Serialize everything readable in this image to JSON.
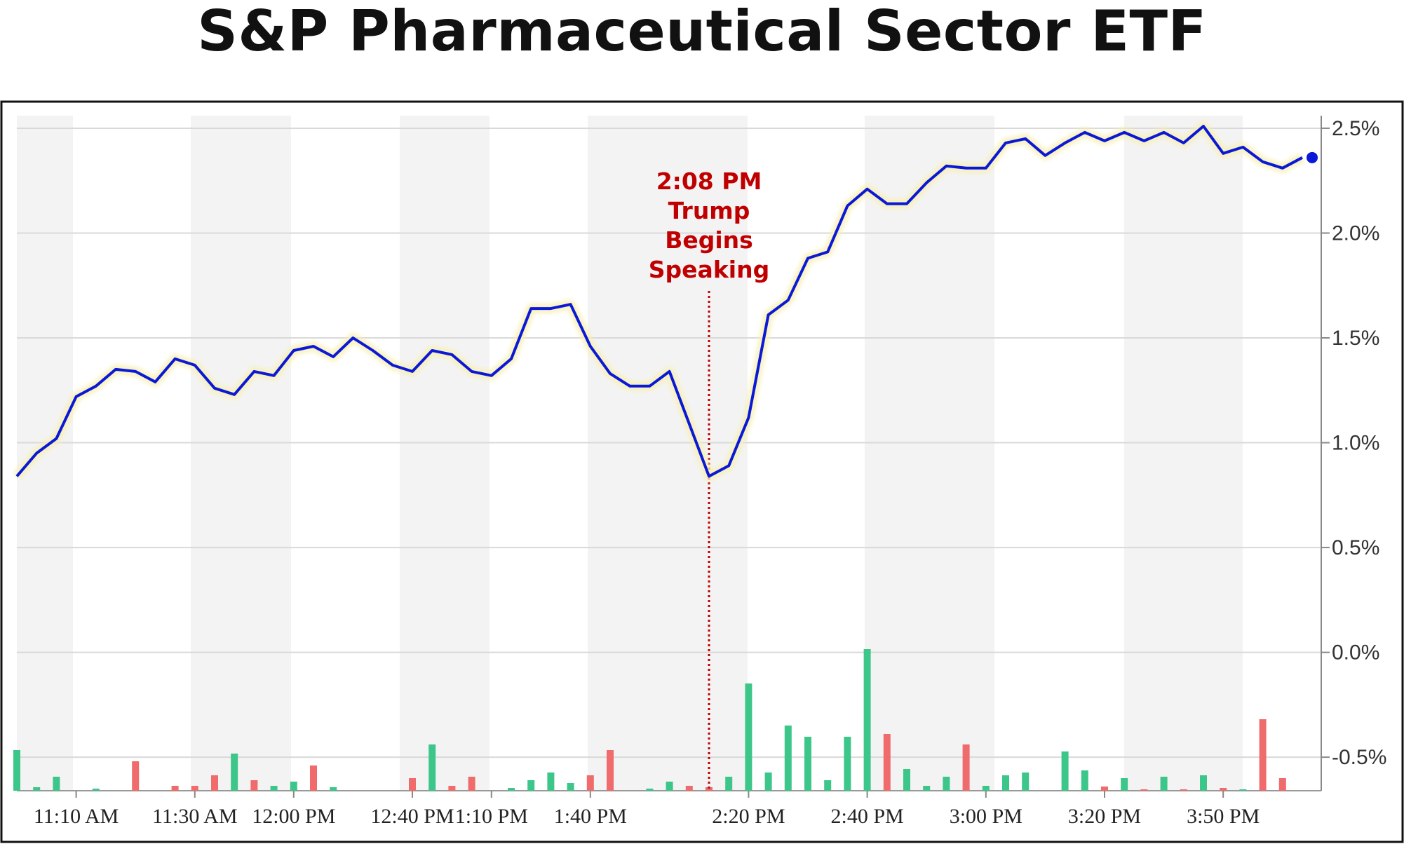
{
  "chart_data": {
    "type": "line",
    "title": "S&P Pharmaceutical Sector ETF",
    "xlabel": "",
    "ylabel": "",
    "ylim": [
      -0.66,
      2.56
    ],
    "yticks": [
      2.5,
      2.0,
      1.5,
      1.0,
      0.5,
      0.0,
      -0.5
    ],
    "ytick_labels": [
      "2.5%",
      "2.0%",
      "1.5%",
      "1.0%",
      "0.5%",
      "0.0%",
      "-0.5%"
    ],
    "x_tick_labels": [
      "11:10 AM",
      "11:30 AM",
      "12:00 PM",
      "12:40 PM",
      "1:10 PM",
      "1:40 PM",
      "2:20 PM",
      "2:40 PM",
      "3:00 PM",
      "3:20 PM",
      "3:50 PM"
    ],
    "x_tick_index": [
      3,
      9,
      14,
      20,
      24,
      29,
      37,
      43,
      49,
      55,
      61
    ],
    "grid": true,
    "line_color": "#0a18d8",
    "up_color": "#3cc68a",
    "down_color": "#f06b6b",
    "series": [
      {
        "values": [
          0.84,
          0.95,
          1.02,
          1.22,
          1.27,
          1.35,
          1.34,
          1.29,
          1.4,
          1.37,
          1.26,
          1.23,
          1.34,
          1.32,
          1.44,
          1.46,
          1.41,
          1.5,
          1.44,
          1.37,
          1.34,
          1.44,
          1.42,
          1.34,
          1.32,
          1.4,
          1.64,
          1.64,
          1.66,
          1.46,
          1.33,
          1.27,
          1.27,
          1.34,
          1.09,
          0.84,
          0.89,
          1.12,
          1.61,
          1.68,
          1.88,
          1.91,
          2.13,
          2.21,
          2.14,
          2.14,
          2.24,
          2.32,
          2.31,
          2.31,
          2.43,
          2.45,
          2.37,
          2.43,
          2.48,
          2.44,
          2.48,
          2.44,
          2.48,
          2.43,
          2.51,
          2.38,
          2.41,
          2.34,
          2.31,
          2.36
        ]
      }
    ],
    "volume_bars": [
      {
        "i": 0,
        "h": 58,
        "dir": "up"
      },
      {
        "i": 1,
        "h": 5,
        "dir": "up"
      },
      {
        "i": 2,
        "h": 20,
        "dir": "up"
      },
      {
        "i": 4,
        "h": 3,
        "dir": "up"
      },
      {
        "i": 6,
        "h": 42,
        "dir": "down"
      },
      {
        "i": 8,
        "h": 7,
        "dir": "down"
      },
      {
        "i": 9,
        "h": 7,
        "dir": "down"
      },
      {
        "i": 10,
        "h": 22,
        "dir": "down"
      },
      {
        "i": 11,
        "h": 53,
        "dir": "up"
      },
      {
        "i": 12,
        "h": 15,
        "dir": "down"
      },
      {
        "i": 13,
        "h": 7,
        "dir": "up"
      },
      {
        "i": 14,
        "h": 13,
        "dir": "up"
      },
      {
        "i": 15,
        "h": 36,
        "dir": "down"
      },
      {
        "i": 16,
        "h": 5,
        "dir": "up"
      },
      {
        "i": 20,
        "h": 18,
        "dir": "down"
      },
      {
        "i": 21,
        "h": 66,
        "dir": "up"
      },
      {
        "i": 22,
        "h": 7,
        "dir": "down"
      },
      {
        "i": 23,
        "h": 20,
        "dir": "down"
      },
      {
        "i": 25,
        "h": 4,
        "dir": "up"
      },
      {
        "i": 26,
        "h": 15,
        "dir": "up"
      },
      {
        "i": 27,
        "h": 26,
        "dir": "up"
      },
      {
        "i": 28,
        "h": 11,
        "dir": "up"
      },
      {
        "i": 29,
        "h": 22,
        "dir": "down"
      },
      {
        "i": 30,
        "h": 58,
        "dir": "down"
      },
      {
        "i": 32,
        "h": 3,
        "dir": "up"
      },
      {
        "i": 33,
        "h": 13,
        "dir": "up"
      },
      {
        "i": 34,
        "h": 7,
        "dir": "down"
      },
      {
        "i": 35,
        "h": 5,
        "dir": "down"
      },
      {
        "i": 36,
        "h": 20,
        "dir": "up"
      },
      {
        "i": 37,
        "h": 153,
        "dir": "up"
      },
      {
        "i": 38,
        "h": 26,
        "dir": "up"
      },
      {
        "i": 39,
        "h": 93,
        "dir": "up"
      },
      {
        "i": 40,
        "h": 77,
        "dir": "up"
      },
      {
        "i": 41,
        "h": 15,
        "dir": "up"
      },
      {
        "i": 42,
        "h": 77,
        "dir": "up"
      },
      {
        "i": 43,
        "h": 202,
        "dir": "up"
      },
      {
        "i": 44,
        "h": 81,
        "dir": "down"
      },
      {
        "i": 45,
        "h": 31,
        "dir": "up"
      },
      {
        "i": 46,
        "h": 7,
        "dir": "up"
      },
      {
        "i": 47,
        "h": 20,
        "dir": "up"
      },
      {
        "i": 48,
        "h": 66,
        "dir": "down"
      },
      {
        "i": 49,
        "h": 7,
        "dir": "up"
      },
      {
        "i": 50,
        "h": 22,
        "dir": "up"
      },
      {
        "i": 51,
        "h": 26,
        "dir": "up"
      },
      {
        "i": 53,
        "h": 56,
        "dir": "up"
      },
      {
        "i": 54,
        "h": 29,
        "dir": "up"
      },
      {
        "i": 55,
        "h": 6,
        "dir": "down"
      },
      {
        "i": 56,
        "h": 18,
        "dir": "up"
      },
      {
        "i": 57,
        "h": 2,
        "dir": "down"
      },
      {
        "i": 58,
        "h": 20,
        "dir": "up"
      },
      {
        "i": 59,
        "h": 2,
        "dir": "down"
      },
      {
        "i": 60,
        "h": 22,
        "dir": "up"
      },
      {
        "i": 61,
        "h": 4,
        "dir": "down"
      },
      {
        "i": 62,
        "h": 2,
        "dir": "up"
      },
      {
        "i": 63,
        "h": 102,
        "dir": "down"
      },
      {
        "i": 64,
        "h": 18,
        "dir": "down"
      }
    ],
    "annotations": [
      {
        "index": 35,
        "lines": [
          "2:08 PM",
          "Trump",
          "Begins",
          "Speaking"
        ],
        "color": "#c00000"
      }
    ]
  }
}
